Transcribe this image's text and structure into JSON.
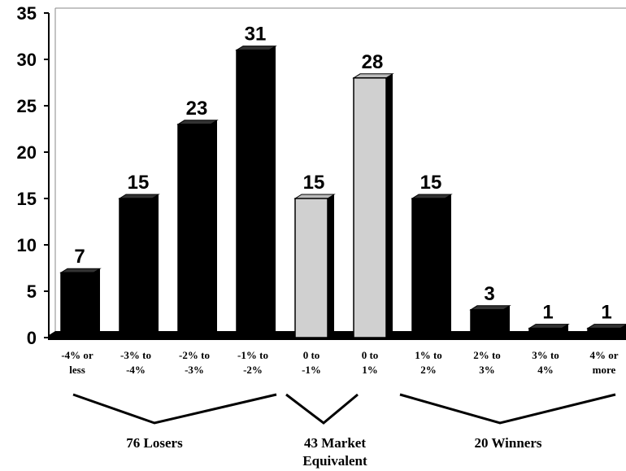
{
  "chart_data": {
    "type": "bar3d",
    "categories": [
      "-4% or\nless",
      "-3% to\n-4%",
      "-2% to\n-3%",
      "-1% to\n-2%",
      "0 to\n-1%",
      "0 to\n1%",
      "1% to\n2%",
      "2% to\n3%",
      "3% to\n4%",
      "4% or\nmore"
    ],
    "values": [
      7,
      15,
      23,
      31,
      15,
      28,
      15,
      3,
      1,
      1
    ],
    "colors": [
      "#000000",
      "#000000",
      "#000000",
      "#000000",
      "#d0d0d0",
      "#d0d0d0",
      "#000000",
      "#000000",
      "#000000",
      "#000000"
    ],
    "ylim": [
      0,
      35
    ],
    "yticks": [
      0,
      5,
      10,
      15,
      20,
      25,
      30,
      35
    ],
    "groups": [
      {
        "label": "76 Losers"
      },
      {
        "label": "43 Market\nEquivalent"
      },
      {
        "label": "20 Winners"
      }
    ]
  }
}
